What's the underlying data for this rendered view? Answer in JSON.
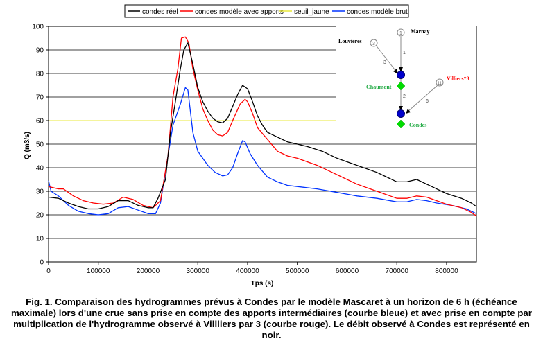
{
  "chart_data": {
    "type": "line",
    "title": "",
    "xlabel": "Tps (s)",
    "ylabel": "Q (m3/s)",
    "xlim": [
      0,
      860000
    ],
    "ylim": [
      0,
      100
    ],
    "x_ticks": [
      0,
      100000,
      200000,
      300000,
      400000,
      500000,
      600000,
      700000,
      800000
    ],
    "x_tick_labels": [
      "0",
      "100000",
      "200000",
      "300000",
      "400000",
      "500000",
      "600000",
      "700000",
      "800000"
    ],
    "y_ticks": [
      0,
      10,
      20,
      30,
      40,
      50,
      60,
      70,
      80,
      90,
      100
    ],
    "y_tick_labels": [
      "0",
      "10",
      "20",
      "30",
      "40",
      "50",
      "60",
      "70",
      "80",
      "90",
      "100"
    ],
    "grid": "horizontal",
    "legend_position": "top",
    "series": [
      {
        "name": "condes réel",
        "color": "#000000",
        "points": [
          [
            0,
            27.5
          ],
          [
            20000,
            27
          ],
          [
            40000,
            25
          ],
          [
            60000,
            23.5
          ],
          [
            80000,
            22.5
          ],
          [
            100000,
            22.5
          ],
          [
            120000,
            23.5
          ],
          [
            140000,
            26
          ],
          [
            160000,
            26
          ],
          [
            180000,
            24
          ],
          [
            200000,
            23
          ],
          [
            210000,
            23
          ],
          [
            220000,
            27
          ],
          [
            235000,
            35
          ],
          [
            245000,
            55
          ],
          [
            255000,
            68
          ],
          [
            265000,
            82
          ],
          [
            272000,
            90
          ],
          [
            280000,
            93
          ],
          [
            290000,
            84
          ],
          [
            300000,
            74
          ],
          [
            310000,
            68
          ],
          [
            320000,
            64
          ],
          [
            330000,
            61
          ],
          [
            340000,
            59.5
          ],
          [
            350000,
            59
          ],
          [
            360000,
            61
          ],
          [
            370000,
            66
          ],
          [
            380000,
            71
          ],
          [
            390000,
            75
          ],
          [
            400000,
            73.5
          ],
          [
            410000,
            68
          ],
          [
            420000,
            62
          ],
          [
            430000,
            58
          ],
          [
            440000,
            55
          ],
          [
            460000,
            53
          ],
          [
            480000,
            51
          ],
          [
            500000,
            50
          ],
          [
            520000,
            49
          ],
          [
            550000,
            47
          ],
          [
            580000,
            44
          ],
          [
            620000,
            41
          ],
          [
            660000,
            38
          ],
          [
            700000,
            34
          ],
          [
            720000,
            34
          ],
          [
            740000,
            35
          ],
          [
            760000,
            33
          ],
          [
            780000,
            31
          ],
          [
            800000,
            29
          ],
          [
            830000,
            27
          ],
          [
            850000,
            25
          ],
          [
            860000,
            23.5
          ]
        ]
      },
      {
        "name": "condes modèle avec apports",
        "color": "#ff0000",
        "points": [
          [
            0,
            32
          ],
          [
            20000,
            31
          ],
          [
            30000,
            31
          ],
          [
            50000,
            28
          ],
          [
            70000,
            26
          ],
          [
            90000,
            25
          ],
          [
            110000,
            24.5
          ],
          [
            130000,
            25
          ],
          [
            150000,
            27.5
          ],
          [
            170000,
            26.5
          ],
          [
            190000,
            24
          ],
          [
            210000,
            23
          ],
          [
            225000,
            26
          ],
          [
            240000,
            45
          ],
          [
            250000,
            70
          ],
          [
            260000,
            82
          ],
          [
            267000,
            95
          ],
          [
            275000,
            95.5
          ],
          [
            282000,
            93
          ],
          [
            290000,
            82
          ],
          [
            300000,
            73
          ],
          [
            310000,
            65
          ],
          [
            320000,
            60
          ],
          [
            330000,
            56
          ],
          [
            340000,
            54
          ],
          [
            350000,
            53.5
          ],
          [
            360000,
            55
          ],
          [
            370000,
            60
          ],
          [
            385000,
            67
          ],
          [
            395000,
            69
          ],
          [
            400000,
            68
          ],
          [
            410000,
            63
          ],
          [
            420000,
            57
          ],
          [
            440000,
            52
          ],
          [
            460000,
            47
          ],
          [
            480000,
            45
          ],
          [
            500000,
            44
          ],
          [
            540000,
            41
          ],
          [
            580000,
            37
          ],
          [
            620000,
            33
          ],
          [
            660000,
            30
          ],
          [
            700000,
            27
          ],
          [
            720000,
            27
          ],
          [
            740000,
            28
          ],
          [
            760000,
            27.5
          ],
          [
            780000,
            26
          ],
          [
            800000,
            24.5
          ],
          [
            830000,
            23
          ],
          [
            850000,
            21
          ],
          [
            860000,
            19.5
          ]
        ]
      },
      {
        "name": "seuil_jaune",
        "color": "#e8e83a",
        "points": [
          [
            0,
            60
          ],
          [
            580000,
            60
          ]
        ]
      },
      {
        "name": "condes modèle brut",
        "color": "#0033ff",
        "points": [
          [
            0,
            34.5
          ],
          [
            5000,
            30
          ],
          [
            20000,
            28
          ],
          [
            40000,
            24
          ],
          [
            60000,
            21.5
          ],
          [
            80000,
            20.5
          ],
          [
            100000,
            20
          ],
          [
            120000,
            20.5
          ],
          [
            140000,
            23
          ],
          [
            160000,
            23.5
          ],
          [
            180000,
            22
          ],
          [
            200000,
            20.5
          ],
          [
            215000,
            20.5
          ],
          [
            225000,
            25
          ],
          [
            240000,
            45
          ],
          [
            250000,
            58
          ],
          [
            265000,
            67
          ],
          [
            275000,
            74
          ],
          [
            280000,
            73
          ],
          [
            290000,
            55
          ],
          [
            300000,
            47
          ],
          [
            310000,
            44
          ],
          [
            320000,
            41
          ],
          [
            335000,
            38
          ],
          [
            350000,
            36.5
          ],
          [
            360000,
            37
          ],
          [
            370000,
            40
          ],
          [
            380000,
            46
          ],
          [
            390000,
            51.5
          ],
          [
            395000,
            51
          ],
          [
            405000,
            46
          ],
          [
            420000,
            41
          ],
          [
            440000,
            36
          ],
          [
            460000,
            34
          ],
          [
            480000,
            32.5
          ],
          [
            500000,
            32
          ],
          [
            540000,
            31
          ],
          [
            580000,
            29.5
          ],
          [
            620000,
            28
          ],
          [
            660000,
            27
          ],
          [
            700000,
            25.5
          ],
          [
            720000,
            25.5
          ],
          [
            740000,
            26.5
          ],
          [
            760000,
            26
          ],
          [
            780000,
            25
          ],
          [
            810000,
            24
          ],
          [
            840000,
            22.5
          ],
          [
            860000,
            20.5
          ]
        ]
      }
    ]
  },
  "schema": {
    "nodes": [
      {
        "id": "marnay",
        "label": "Marnay",
        "number": "1",
        "label_color": "#000000"
      },
      {
        "id": "louvieres",
        "label": "Louvières",
        "number": "3",
        "label_color": "#000000"
      },
      {
        "id": "villiers",
        "label": "Villiers*3",
        "number": "11",
        "label_color": "#ff0000"
      },
      {
        "id": "chaumont",
        "label": "Chaumont",
        "label_color": "#22aa44"
      },
      {
        "id": "condes",
        "label": "Condes",
        "label_color": "#22aa44"
      }
    ],
    "edge_labels": [
      "1",
      "3",
      "2",
      "6"
    ]
  },
  "caption": "Fig. 1. Comparaison des hydrogrammes prévus à Condes par le modèle Mascaret à un horizon de 6 h (échéance maximale) lors d'une crue sans prise en compte des apports intermédiaires (courbe bleue) et avec prise en compte par multiplication de l'hydrogramme observé à Villliers par 3 (courbe rouge). Le débit observé à Condes est représenté en noir."
}
